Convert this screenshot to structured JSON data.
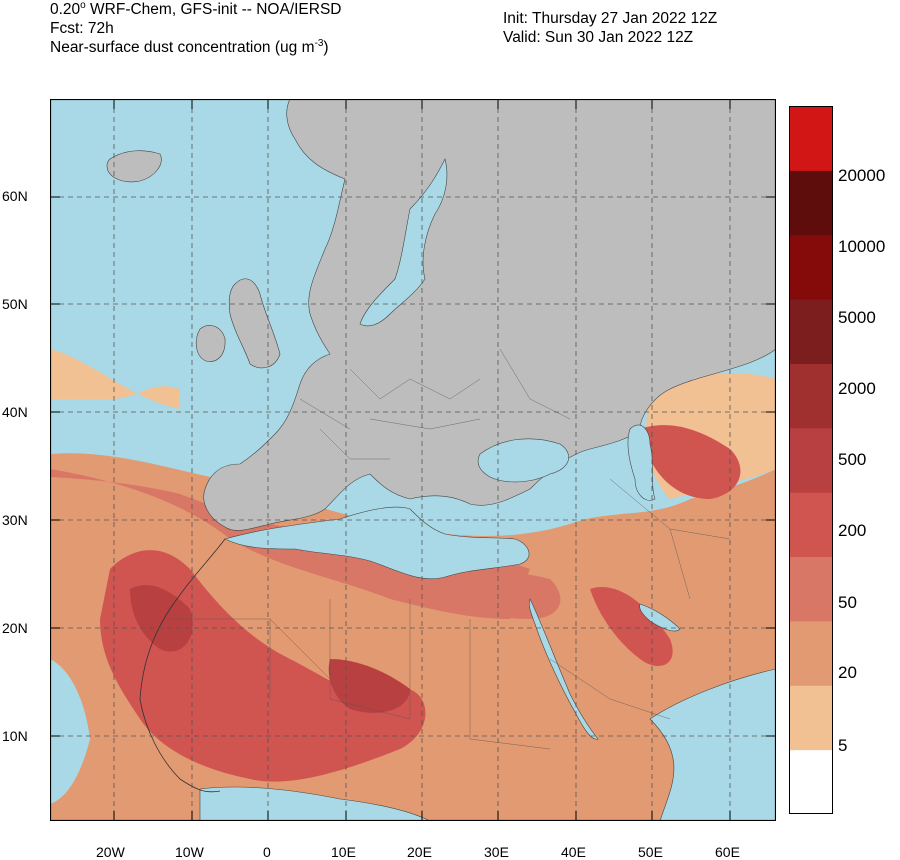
{
  "header": {
    "model_line": "0.20° WRF-Chem, GFS-init -- NOA/IERSD",
    "model_prefix": "0.20",
    "model_suffix": " WRF-Chem, GFS-init -- NOA/IERSD",
    "degree_sup": "o",
    "forecast": "Fcst: 72h",
    "variable": "Near-surface dust concentration (ug m",
    "variable_exp": "-3",
    "variable_close": ")",
    "init": "Init: Thursday 27 Jan 2022  12Z",
    "valid": "Valid: Sun 30 Jan 2022  12Z"
  },
  "axes": {
    "x_ticks": [
      "20W",
      "10W",
      "0",
      "10E",
      "20E",
      "30E",
      "40E",
      "50E",
      "60E"
    ],
    "y_ticks": [
      "60N",
      "50N",
      "40N",
      "30N",
      "20N",
      "10N"
    ]
  },
  "colorbar": {
    "levels": [
      "5",
      "20",
      "50",
      "200",
      "500",
      "2000",
      "5000",
      "10000",
      "20000"
    ],
    "colors": [
      "#ffffff",
      "#f1c093",
      "#e29a72",
      "#d87766",
      "#d05450",
      "#b94040",
      "#a02f2f",
      "#7d1e1e",
      "#850a0a",
      "#5e0c0c",
      "#d21616"
    ]
  },
  "map_colors": {
    "ocean": "#a9d9e6",
    "land": "#bdbdbd"
  }
}
